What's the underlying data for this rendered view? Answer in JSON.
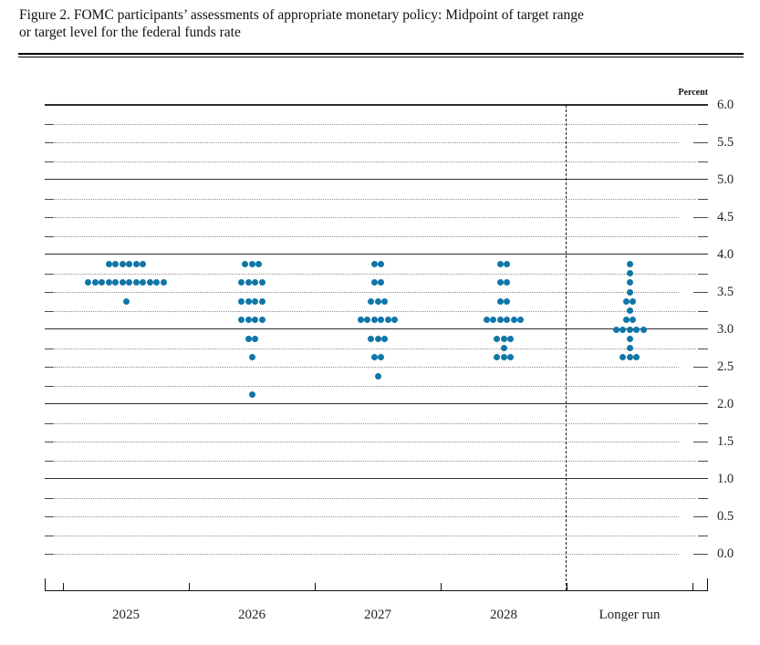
{
  "figure": {
    "title_lines": [
      "Figure 2. FOMC participants’ assessments of appropriate monetary policy: Midpoint of target range",
      "or target level for the federal funds rate"
    ]
  },
  "chart_data": {
    "type": "scatter",
    "subtype": "fomc-dot-plot",
    "title": "FOMC participants’ assessments of appropriate monetary policy: Midpoint of target range or target level for the federal funds rate",
    "unit_label": "Percent",
    "categories": [
      "2025",
      "2026",
      "2027",
      "2028",
      "Longer run"
    ],
    "separator_after_category": "2028",
    "ylim": [
      0.0,
      6.0
    ],
    "y_grid_minor_step": 0.25,
    "y_solid_lines": [
      1.0,
      2.0,
      3.0,
      4.0,
      5.0,
      6.0
    ],
    "ytick_labels": [
      "6.0",
      "5.5",
      "5.0",
      "4.5",
      "4.0",
      "3.5",
      "3.0",
      "2.5",
      "2.0",
      "1.5",
      "1.0",
      "0.5",
      "0.0"
    ],
    "dot_color": "#1076a8",
    "dots_per_column": 19,
    "series": [
      {
        "category": "2025",
        "dots": [
          {
            "rate": 3.875,
            "count": 6
          },
          {
            "rate": 3.625,
            "count": 12
          },
          {
            "rate": 3.375,
            "count": 1
          }
        ]
      },
      {
        "category": "2026",
        "dots": [
          {
            "rate": 3.875,
            "count": 3
          },
          {
            "rate": 3.625,
            "count": 4
          },
          {
            "rate": 3.375,
            "count": 4
          },
          {
            "rate": 3.125,
            "count": 4
          },
          {
            "rate": 2.875,
            "count": 2
          },
          {
            "rate": 2.625,
            "count": 1
          },
          {
            "rate": 2.125,
            "count": 1
          }
        ]
      },
      {
        "category": "2027",
        "dots": [
          {
            "rate": 3.875,
            "count": 2
          },
          {
            "rate": 3.625,
            "count": 2
          },
          {
            "rate": 3.375,
            "count": 3
          },
          {
            "rate": 3.125,
            "count": 6
          },
          {
            "rate": 2.875,
            "count": 3
          },
          {
            "rate": 2.625,
            "count": 2
          },
          {
            "rate": 2.375,
            "count": 1
          }
        ]
      },
      {
        "category": "2028",
        "dots": [
          {
            "rate": 3.875,
            "count": 2
          },
          {
            "rate": 3.625,
            "count": 2
          },
          {
            "rate": 3.375,
            "count": 2
          },
          {
            "rate": 3.125,
            "count": 6
          },
          {
            "rate": 2.875,
            "count": 3
          },
          {
            "rate": 2.75,
            "count": 1
          },
          {
            "rate": 2.625,
            "count": 3
          }
        ]
      },
      {
        "category": "Longer run",
        "dots": [
          {
            "rate": 3.875,
            "count": 1
          },
          {
            "rate": 3.75,
            "count": 1
          },
          {
            "rate": 3.625,
            "count": 1
          },
          {
            "rate": 3.5,
            "count": 1
          },
          {
            "rate": 3.375,
            "count": 2
          },
          {
            "rate": 3.25,
            "count": 1
          },
          {
            "rate": 3.125,
            "count": 2
          },
          {
            "rate": 3.0,
            "count": 5
          },
          {
            "rate": 2.875,
            "count": 1
          },
          {
            "rate": 2.75,
            "count": 1
          },
          {
            "rate": 2.625,
            "count": 3
          }
        ]
      }
    ]
  }
}
